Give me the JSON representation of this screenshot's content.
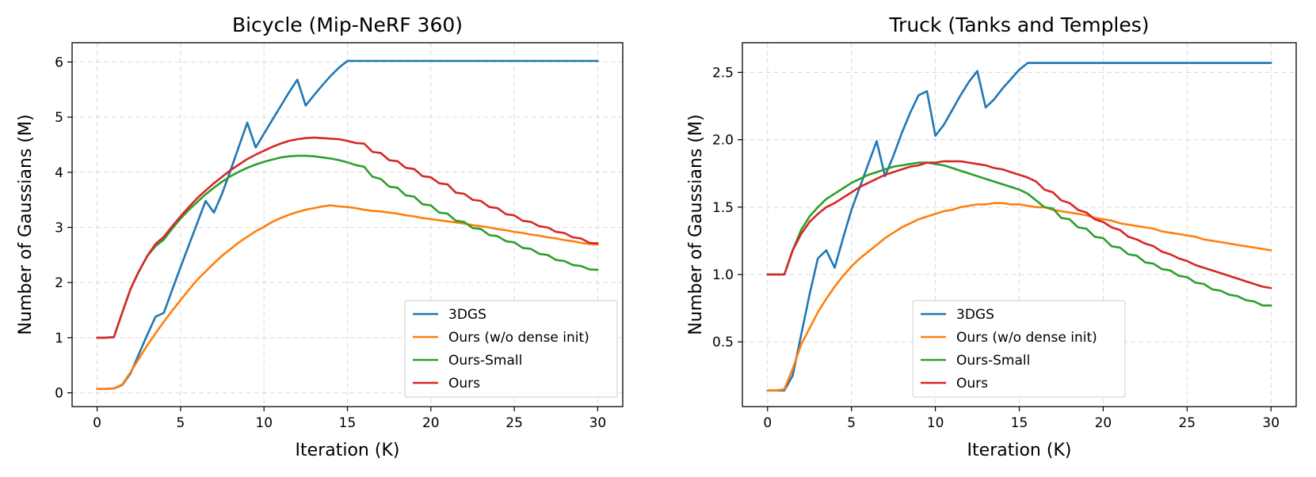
{
  "chart_data": [
    {
      "type": "line",
      "title": "Bicycle (Mip-NeRF 360)",
      "xlabel": "Iteration (K)",
      "ylabel": "Number of Gaussians (M)",
      "xlim": [
        -1.5,
        31.5
      ],
      "ylim": [
        -0.25,
        6.35
      ],
      "xticks": [
        0,
        5,
        10,
        15,
        20,
        25,
        30
      ],
      "xtick_labels": [
        "0",
        "5",
        "10",
        "15",
        "20",
        "25",
        "30"
      ],
      "yticks": [
        0,
        1,
        2,
        3,
        4,
        5,
        6
      ],
      "ytick_labels": [
        "0",
        "1",
        "2",
        "3",
        "4",
        "5",
        "6"
      ],
      "grid": true,
      "legend_position": "lower-right",
      "series": [
        {
          "name": "3DGS",
          "color": "#1f77b4",
          "x": [
            0,
            0.5,
            1,
            1.5,
            2,
            2.5,
            3,
            3.5,
            4,
            4.5,
            5,
            5.5,
            6,
            6.5,
            7,
            7.5,
            8,
            8.5,
            9,
            9.5,
            10,
            10.5,
            11,
            11.5,
            12,
            12.5,
            13,
            13.5,
            14,
            14.5,
            15,
            15.5,
            16,
            20,
            25,
            30
          ],
          "y": [
            0.07,
            0.07,
            0.08,
            0.14,
            0.35,
            0.7,
            1.05,
            1.38,
            1.45,
            1.87,
            2.28,
            2.68,
            3.08,
            3.48,
            3.27,
            3.62,
            4.04,
            4.47,
            4.9,
            4.45,
            4.7,
            4.95,
            5.2,
            5.45,
            5.68,
            5.21,
            5.4,
            5.58,
            5.75,
            5.9,
            6.02,
            6.02,
            6.02,
            6.02,
            6.02,
            6.02
          ]
        },
        {
          "name": "Ours (w/o dense init)",
          "color": "#ff7f0e",
          "x": [
            0,
            0.5,
            1,
            1.5,
            2,
            2.5,
            3,
            3.5,
            4,
            4.5,
            5,
            5.5,
            6,
            6.5,
            7,
            7.5,
            8,
            8.5,
            9,
            9.5,
            10,
            10.5,
            11,
            11.5,
            12,
            12.5,
            13,
            13.5,
            14,
            14.5,
            15,
            15.5,
            16,
            16.5,
            17,
            17.5,
            18,
            18.5,
            19,
            19.5,
            20,
            20.5,
            21,
            21.5,
            22,
            22.5,
            23,
            23.5,
            24,
            24.5,
            25,
            25.5,
            26,
            26.5,
            27,
            27.5,
            28,
            28.5,
            29,
            29.5,
            30
          ],
          "y": [
            0.07,
            0.07,
            0.08,
            0.15,
            0.37,
            0.62,
            0.86,
            1.08,
            1.29,
            1.49,
            1.68,
            1.87,
            2.05,
            2.2,
            2.35,
            2.49,
            2.61,
            2.73,
            2.83,
            2.93,
            3.01,
            3.1,
            3.17,
            3.23,
            3.28,
            3.32,
            3.35,
            3.38,
            3.4,
            3.38,
            3.37,
            3.35,
            3.32,
            3.3,
            3.29,
            3.27,
            3.25,
            3.22,
            3.2,
            3.17,
            3.15,
            3.13,
            3.11,
            3.09,
            3.07,
            3.04,
            3.02,
            3.0,
            2.97,
            2.95,
            2.92,
            2.9,
            2.87,
            2.85,
            2.82,
            2.8,
            2.77,
            2.75,
            2.72,
            2.7,
            2.69
          ]
        },
        {
          "name": "Ours-Small",
          "color": "#2ca02c",
          "x": [
            0,
            0.5,
            1,
            1.5,
            2,
            2.5,
            3,
            3.5,
            4,
            4.5,
            5,
            5.5,
            6,
            6.5,
            7,
            7.5,
            8,
            8.5,
            9,
            9.5,
            10,
            10.5,
            11,
            11.5,
            12,
            12.5,
            13,
            13.5,
            14,
            14.5,
            15,
            15.5,
            16,
            16.5,
            17,
            17.5,
            18,
            18.5,
            19,
            19.5,
            20,
            20.5,
            21,
            21.5,
            22,
            22.5,
            23,
            23.5,
            24,
            24.5,
            25,
            25.5,
            26,
            26.5,
            27,
            27.5,
            28,
            28.5,
            29,
            29.5,
            30
          ],
          "y": [
            1.0,
            1.0,
            1.01,
            1.45,
            1.88,
            2.2,
            2.48,
            2.66,
            2.78,
            2.98,
            3.16,
            3.32,
            3.46,
            3.6,
            3.72,
            3.83,
            3.93,
            4.01,
            4.08,
            4.14,
            4.19,
            4.23,
            4.27,
            4.29,
            4.3,
            4.3,
            4.29,
            4.27,
            4.25,
            4.22,
            4.18,
            4.13,
            4.1,
            3.92,
            3.88,
            3.74,
            3.72,
            3.58,
            3.56,
            3.42,
            3.4,
            3.27,
            3.25,
            3.12,
            3.1,
            2.99,
            2.97,
            2.86,
            2.84,
            2.75,
            2.73,
            2.63,
            2.61,
            2.52,
            2.5,
            2.41,
            2.39,
            2.32,
            2.3,
            2.24,
            2.23
          ]
        },
        {
          "name": "Ours",
          "color": "#d62728",
          "x": [
            0,
            0.5,
            1,
            1.5,
            2,
            2.5,
            3,
            3.5,
            4,
            4.5,
            5,
            5.5,
            6,
            6.5,
            7,
            7.5,
            8,
            8.5,
            9,
            9.5,
            10,
            10.5,
            11,
            11.5,
            12,
            12.5,
            13,
            13.5,
            14,
            14.5,
            15,
            15.5,
            16,
            16.5,
            17,
            17.5,
            18,
            18.5,
            19,
            19.5,
            20,
            20.5,
            21,
            21.5,
            22,
            22.5,
            23,
            23.5,
            24,
            24.5,
            25,
            25.5,
            26,
            26.5,
            27,
            27.5,
            28,
            28.5,
            29,
            29.5,
            30
          ],
          "y": [
            1.0,
            1.0,
            1.01,
            1.45,
            1.88,
            2.2,
            2.48,
            2.7,
            2.83,
            3.02,
            3.2,
            3.37,
            3.53,
            3.67,
            3.8,
            3.92,
            4.04,
            4.14,
            4.24,
            4.32,
            4.39,
            4.46,
            4.52,
            4.57,
            4.6,
            4.62,
            4.63,
            4.62,
            4.61,
            4.6,
            4.57,
            4.53,
            4.52,
            4.37,
            4.35,
            4.22,
            4.2,
            4.08,
            4.06,
            3.93,
            3.91,
            3.8,
            3.78,
            3.63,
            3.61,
            3.5,
            3.48,
            3.37,
            3.35,
            3.24,
            3.22,
            3.12,
            3.1,
            3.02,
            3.0,
            2.92,
            2.9,
            2.82,
            2.8,
            2.72,
            2.71
          ]
        }
      ]
    },
    {
      "type": "line",
      "title": "Truck (Tanks and Temples)",
      "xlabel": "Iteration (K)",
      "ylabel": "Number of Gaussians (M)",
      "xlim": [
        -1.5,
        31.5
      ],
      "ylim": [
        0.02,
        2.72
      ],
      "xticks": [
        0,
        5,
        10,
        15,
        20,
        25,
        30
      ],
      "xtick_labels": [
        "0",
        "5",
        "10",
        "15",
        "20",
        "25",
        "30"
      ],
      "yticks": [
        0.5,
        1.0,
        1.5,
        2.0,
        2.5
      ],
      "ytick_labels": [
        "0.5",
        "1.0",
        "1.5",
        "2.0",
        "2.5"
      ],
      "grid": true,
      "legend_position": "lower-center",
      "series": [
        {
          "name": "3DGS",
          "color": "#1f77b4",
          "x": [
            0,
            0.5,
            1,
            1.5,
            2,
            2.5,
            3,
            3.5,
            4,
            4.5,
            5,
            5.5,
            6,
            6.5,
            7,
            7.5,
            8,
            8.5,
            9,
            9.5,
            10,
            10.5,
            11,
            11.5,
            12,
            12.5,
            13,
            13.5,
            14,
            14.5,
            15,
            15.5,
            16,
            20,
            25,
            30
          ],
          "y": [
            0.14,
            0.14,
            0.14,
            0.25,
            0.55,
            0.85,
            1.12,
            1.18,
            1.05,
            1.27,
            1.48,
            1.65,
            1.82,
            1.99,
            1.73,
            1.88,
            2.05,
            2.2,
            2.33,
            2.36,
            2.03,
            2.11,
            2.22,
            2.33,
            2.43,
            2.51,
            2.24,
            2.3,
            2.38,
            2.45,
            2.52,
            2.57,
            2.57,
            2.57,
            2.57,
            2.57
          ]
        },
        {
          "name": "Ours (w/o dense init)",
          "color": "#ff7f0e",
          "x": [
            0,
            0.5,
            1,
            1.5,
            2,
            2.5,
            3,
            3.5,
            4,
            4.5,
            5,
            5.5,
            6,
            6.5,
            7,
            7.5,
            8,
            8.5,
            9,
            9.5,
            10,
            10.5,
            11,
            11.5,
            12,
            12.5,
            13,
            13.5,
            14,
            14.5,
            15,
            15.5,
            16,
            16.5,
            17,
            17.5,
            18,
            18.5,
            19,
            19.5,
            20,
            20.5,
            21,
            21.5,
            22,
            22.5,
            23,
            23.5,
            24,
            24.5,
            25,
            25.5,
            26,
            26.5,
            27,
            27.5,
            28,
            28.5,
            29,
            29.5,
            30
          ],
          "y": [
            0.14,
            0.14,
            0.15,
            0.3,
            0.48,
            0.6,
            0.72,
            0.82,
            0.91,
            0.99,
            1.06,
            1.12,
            1.17,
            1.22,
            1.27,
            1.31,
            1.35,
            1.38,
            1.41,
            1.43,
            1.45,
            1.47,
            1.48,
            1.5,
            1.51,
            1.52,
            1.52,
            1.53,
            1.53,
            1.52,
            1.52,
            1.51,
            1.5,
            1.5,
            1.48,
            1.47,
            1.46,
            1.45,
            1.44,
            1.42,
            1.41,
            1.4,
            1.38,
            1.37,
            1.36,
            1.35,
            1.34,
            1.32,
            1.31,
            1.3,
            1.29,
            1.28,
            1.26,
            1.25,
            1.24,
            1.23,
            1.22,
            1.21,
            1.2,
            1.19,
            1.18
          ]
        },
        {
          "name": "Ours-Small",
          "color": "#2ca02c",
          "x": [
            0,
            0.5,
            1,
            1.5,
            2,
            2.5,
            3,
            3.5,
            4,
            4.5,
            5,
            5.5,
            6,
            6.5,
            7,
            7.5,
            8,
            8.5,
            9,
            9.5,
            10,
            10.5,
            11,
            11.5,
            12,
            12.5,
            13,
            13.5,
            14,
            14.5,
            15,
            15.5,
            16,
            16.5,
            17,
            17.5,
            18,
            18.5,
            19,
            19.5,
            20,
            20.5,
            21,
            21.5,
            22,
            22.5,
            23,
            23.5,
            24,
            24.5,
            25,
            25.5,
            26,
            26.5,
            27,
            27.5,
            28,
            28.5,
            29,
            29.5,
            30
          ],
          "y": [
            1.0,
            1.0,
            1.0,
            1.18,
            1.33,
            1.43,
            1.5,
            1.56,
            1.6,
            1.64,
            1.68,
            1.71,
            1.74,
            1.76,
            1.78,
            1.8,
            1.81,
            1.82,
            1.83,
            1.83,
            1.82,
            1.81,
            1.79,
            1.77,
            1.75,
            1.73,
            1.71,
            1.69,
            1.67,
            1.65,
            1.63,
            1.6,
            1.55,
            1.5,
            1.49,
            1.42,
            1.41,
            1.35,
            1.34,
            1.28,
            1.27,
            1.21,
            1.2,
            1.15,
            1.14,
            1.09,
            1.08,
            1.04,
            1.03,
            0.99,
            0.98,
            0.94,
            0.93,
            0.89,
            0.88,
            0.85,
            0.84,
            0.81,
            0.8,
            0.77,
            0.77
          ]
        },
        {
          "name": "Ours",
          "color": "#d62728",
          "x": [
            0,
            0.5,
            1,
            1.5,
            2,
            2.5,
            3,
            3.5,
            4,
            4.5,
            5,
            5.5,
            6,
            6.5,
            7,
            7.5,
            8,
            8.5,
            9,
            9.5,
            10,
            10.5,
            11,
            11.5,
            12,
            12.5,
            13,
            13.5,
            14,
            14.5,
            15,
            15.5,
            16,
            16.5,
            17,
            17.5,
            18,
            18.5,
            19,
            19.5,
            20,
            20.5,
            21,
            21.5,
            22,
            22.5,
            23,
            23.5,
            24,
            24.5,
            25,
            25.5,
            26,
            26.5,
            27,
            27.5,
            28,
            28.5,
            29,
            29.5,
            30
          ],
          "y": [
            1.0,
            1.0,
            1.0,
            1.18,
            1.3,
            1.39,
            1.45,
            1.5,
            1.53,
            1.57,
            1.61,
            1.65,
            1.68,
            1.71,
            1.74,
            1.76,
            1.78,
            1.8,
            1.81,
            1.83,
            1.83,
            1.84,
            1.84,
            1.84,
            1.83,
            1.82,
            1.81,
            1.79,
            1.78,
            1.76,
            1.74,
            1.72,
            1.69,
            1.63,
            1.61,
            1.55,
            1.53,
            1.48,
            1.46,
            1.41,
            1.39,
            1.35,
            1.33,
            1.28,
            1.26,
            1.23,
            1.21,
            1.17,
            1.15,
            1.12,
            1.1,
            1.07,
            1.05,
            1.03,
            1.01,
            0.99,
            0.97,
            0.95,
            0.93,
            0.91,
            0.9
          ]
        }
      ]
    }
  ]
}
